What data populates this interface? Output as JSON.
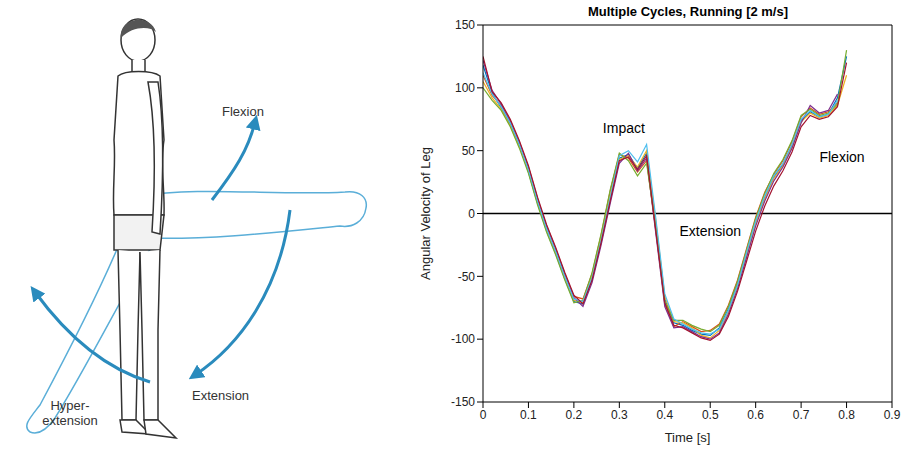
{
  "diagram": {
    "labels": {
      "flexion": "Flexion",
      "extension": "Extension",
      "hyperextension": [
        "Hyper-",
        "extension"
      ]
    }
  },
  "chart_data": {
    "type": "line",
    "title": "Multiple Cycles, Running [2 m/s]",
    "x_label": "Time [s]",
    "y_label": "Angular Velocity of Leg",
    "xlim": [
      0,
      0.9
    ],
    "xticks": [
      0,
      0.1,
      0.2,
      0.3,
      0.4,
      0.5,
      0.6,
      0.7,
      0.8,
      0.9
    ],
    "ylim": [
      -150,
      150
    ],
    "yticks": [
      -150,
      -100,
      -50,
      0,
      50,
      100,
      150
    ],
    "grid": false,
    "hlines": [
      0
    ],
    "annotations": [
      {
        "text": "Impact",
        "x": 0.31,
        "y": 68
      },
      {
        "text": "Extension",
        "x": 0.5,
        "y": -14
      },
      {
        "text": "Flexion",
        "x": 0.79,
        "y": 45
      }
    ],
    "x": [
      0,
      0.02,
      0.04,
      0.06,
      0.08,
      0.1,
      0.12,
      0.14,
      0.16,
      0.18,
      0.2,
      0.22,
      0.24,
      0.26,
      0.28,
      0.3,
      0.32,
      0.34,
      0.36,
      0.38,
      0.4,
      0.42,
      0.44,
      0.46,
      0.48,
      0.5,
      0.52,
      0.54,
      0.56,
      0.58,
      0.6,
      0.62,
      0.64,
      0.66,
      0.68,
      0.7,
      0.72,
      0.74,
      0.76,
      0.78,
      0.8
    ],
    "series": [
      {
        "color": "#0072BD",
        "values": [
          118,
          96,
          84,
          71,
          54,
          33,
          8,
          -14,
          -32,
          -52,
          -70,
          -72,
          -52,
          -22,
          12,
          44,
          47,
          36,
          48,
          -8,
          -68,
          -87,
          -89,
          -93,
          -96,
          -97,
          -91,
          -76,
          -56,
          -32,
          -7,
          13,
          29,
          39,
          54,
          74,
          81,
          77,
          79,
          92,
          125
        ]
      },
      {
        "color": "#D95319",
        "values": [
          110,
          94,
          86,
          74,
          57,
          37,
          12,
          -10,
          -28,
          -48,
          -66,
          -68,
          -48,
          -17,
          18,
          47,
          44,
          33,
          42,
          -12,
          -72,
          -90,
          -86,
          -90,
          -94,
          -93,
          -88,
          -73,
          -53,
          -28,
          -3,
          17,
          31,
          42,
          57,
          77,
          84,
          79,
          81,
          88,
          null
        ]
      },
      {
        "color": "#EDB120",
        "values": [
          105,
          92,
          83,
          70,
          53,
          34,
          9,
          -13,
          -31,
          -51,
          -69,
          -71,
          -49,
          -19,
          14,
          43,
          46,
          37,
          50,
          -5,
          -66,
          -86,
          -87,
          -91,
          -97,
          -99,
          -93,
          -78,
          -58,
          -33,
          -8,
          12,
          28,
          38,
          53,
          73,
          80,
          76,
          78,
          86,
          110
        ]
      },
      {
        "color": "#7E2F8E",
        "values": [
          122,
          98,
          87,
          73,
          56,
          36,
          11,
          -11,
          -29,
          -49,
          -67,
          -74,
          -55,
          -25,
          8,
          40,
          48,
          34,
          44,
          -15,
          -74,
          -91,
          -90,
          -94,
          -98,
          -100,
          -95,
          -80,
          -60,
          -35,
          -10,
          10,
          26,
          37,
          52,
          72,
          86,
          80,
          82,
          95,
          null
        ]
      },
      {
        "color": "#77AC30",
        "values": [
          100,
          90,
          82,
          69,
          52,
          32,
          7,
          -15,
          -33,
          -53,
          -71,
          -69,
          -47,
          -16,
          19,
          48,
          42,
          30,
          40,
          -10,
          -70,
          -85,
          -85,
          -89,
          -92,
          -94,
          -89,
          -74,
          -54,
          -29,
          -4,
          16,
          32,
          43,
          58,
          78,
          83,
          78,
          80,
          87,
          130
        ]
      },
      {
        "color": "#4DBEEE",
        "values": [
          112,
          95,
          85,
          72,
          55,
          35,
          10,
          -12,
          -30,
          -50,
          -68,
          -70,
          -51,
          -21,
          13,
          46,
          50,
          41,
          55,
          -3,
          -64,
          -84,
          -88,
          -92,
          -95,
          -96,
          -92,
          -77,
          -57,
          -31,
          -6,
          14,
          30,
          40,
          55,
          75,
          82,
          77,
          79,
          90,
          null
        ]
      },
      {
        "color": "#A2142F",
        "values": [
          125,
          97,
          88,
          75,
          58,
          38,
          13,
          -9,
          -27,
          -47,
          -65,
          -72,
          -53,
          -23,
          10,
          42,
          45,
          35,
          46,
          -13,
          -71,
          -89,
          -91,
          -95,
          -99,
          -101,
          -96,
          -82,
          -62,
          -38,
          -14,
          6,
          22,
          34,
          49,
          69,
          78,
          75,
          77,
          85,
          120
        ]
      }
    ]
  }
}
